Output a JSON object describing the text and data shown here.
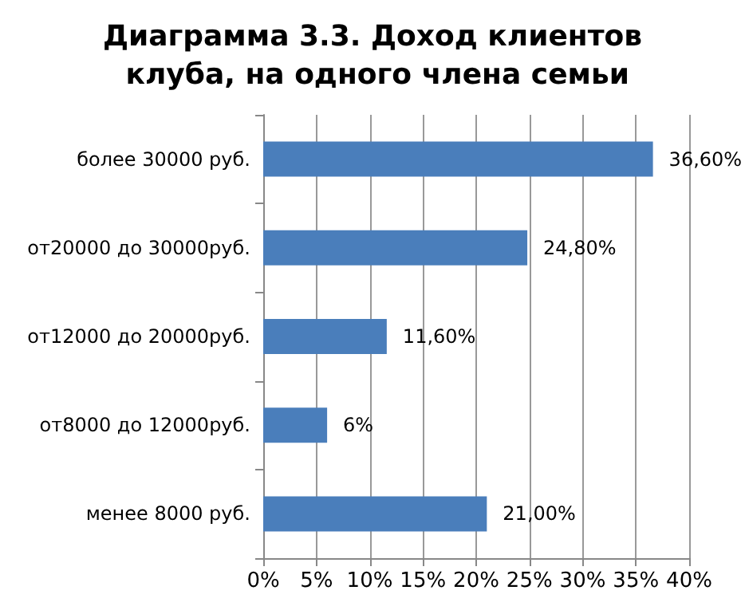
{
  "chart_data": {
    "type": "bar",
    "orientation": "horizontal",
    "title": "Диаграмма 3.3. Доход клиентов клуба, на одного члена семьи",
    "categories": [
      "более 30000 руб.",
      "от20000 до 30000руб.",
      "от12000 до 20000руб.",
      "от8000 до 12000руб.",
      "менее 8000 руб."
    ],
    "values": [
      36.6,
      24.8,
      11.6,
      6,
      21
    ],
    "value_labels": [
      "36,60%",
      "24,80%",
      "11,60%",
      "6%",
      "21,00%"
    ],
    "color": "#4a7ebb",
    "xlim": [
      0,
      40
    ],
    "xticks": [
      {
        "value": 0,
        "label": "0%"
      },
      {
        "value": 5,
        "label": "5%"
      },
      {
        "value": 10,
        "label": "10%"
      },
      {
        "value": 15,
        "label": "15%"
      },
      {
        "value": 20,
        "label": "20%"
      },
      {
        "value": 25,
        "label": "25%"
      },
      {
        "value": 30,
        "label": "30%"
      },
      {
        "value": 35,
        "label": "35%"
      },
      {
        "value": 40,
        "label": "40%"
      }
    ],
    "grid": "x"
  }
}
